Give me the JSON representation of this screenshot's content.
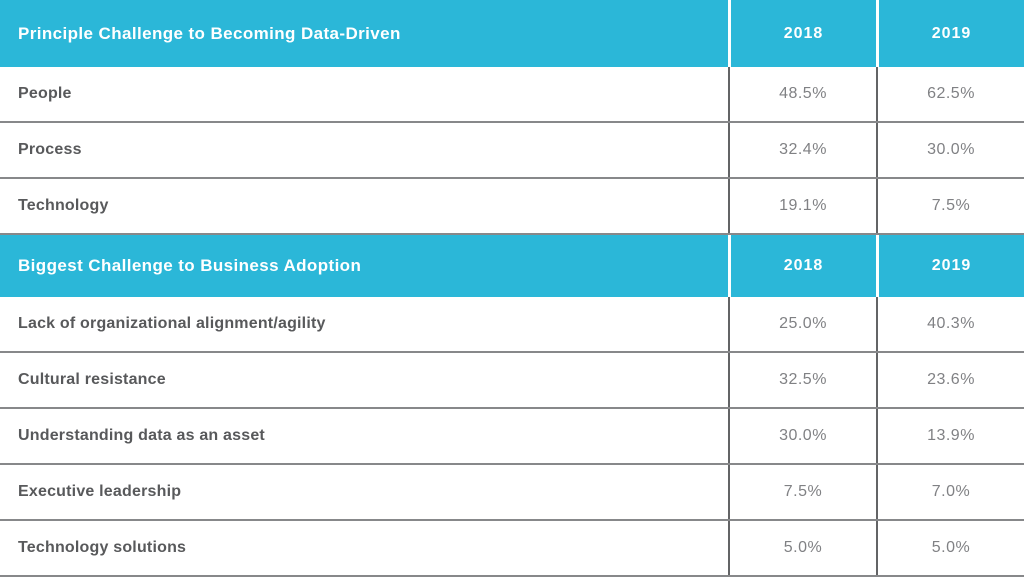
{
  "colors": {
    "header_bg": "#2bb7d8",
    "header_text": "#ffffff",
    "label_text": "#58595b",
    "value_text": "#808184",
    "row_border": "#87888a",
    "col_border": "#636466",
    "header_divider": "#ffffff",
    "page_bg": "#ffffff"
  },
  "chart_data": [
    {
      "type": "table",
      "title": "Principle Challenge to Becoming Data-Driven",
      "unit": "percent",
      "categories": [
        "People",
        "Process",
        "Technology"
      ],
      "series": [
        {
          "name": "2018",
          "values": [
            48.5,
            32.4,
            19.1
          ]
        },
        {
          "name": "2019",
          "values": [
            62.5,
            30.0,
            7.5
          ]
        }
      ],
      "header": {
        "label": "Principle Challenge to Becoming Data-Driven",
        "col_2018": "2018",
        "col_2019": "2019"
      },
      "rows": [
        {
          "label": "People",
          "v2018": "48.5%",
          "v2019": "62.5%"
        },
        {
          "label": "Process",
          "v2018": "32.4%",
          "v2019": "30.0%"
        },
        {
          "label": "Technology",
          "v2018": "19.1%",
          "v2019": "7.5%"
        }
      ]
    },
    {
      "type": "table",
      "title": "Biggest Challenge to Business Adoption",
      "unit": "percent",
      "categories": [
        "Lack of organizational alignment/agility",
        "Cultural resistance",
        "Understanding data as an asset",
        "Executive leadership",
        "Technology solutions"
      ],
      "series": [
        {
          "name": "2018",
          "values": [
            25.0,
            32.5,
            30.0,
            7.5,
            5.0
          ]
        },
        {
          "name": "2019",
          "values": [
            40.3,
            23.6,
            13.9,
            7.0,
            5.0
          ]
        }
      ],
      "header": {
        "label": "Biggest Challenge to Business Adoption",
        "col_2018": "2018",
        "col_2019": "2019"
      },
      "rows": [
        {
          "label": "Lack of organizational alignment/agility",
          "v2018": "25.0%",
          "v2019": "40.3%"
        },
        {
          "label": "Cultural resistance",
          "v2018": "32.5%",
          "v2019": "23.6%"
        },
        {
          "label": "Understanding data as an asset",
          "v2018": "30.0%",
          "v2019": "13.9%"
        },
        {
          "label": "Executive leadership",
          "v2018": "7.5%",
          "v2019": "7.0%"
        },
        {
          "label": "Technology solutions",
          "v2018": "5.0%",
          "v2019": "5.0%"
        }
      ]
    }
  ]
}
